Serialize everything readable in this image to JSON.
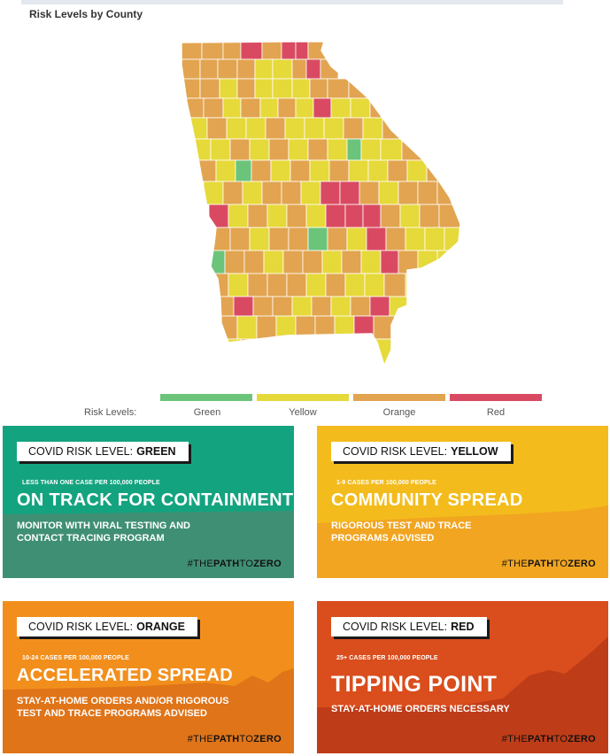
{
  "map": {
    "title": "Risk Levels by County",
    "legend_label": "Risk Levels:",
    "legend": [
      {
        "name": "Green",
        "color": "#6cc47a"
      },
      {
        "name": "Yellow",
        "color": "#e6d93a"
      },
      {
        "name": "Orange",
        "color": "#e2a450"
      },
      {
        "name": "Red",
        "color": "#d94a62"
      }
    ]
  },
  "cards": [
    {
      "level_prefix": "COVID RISK LEVEL:",
      "level": "GREEN",
      "subtext": "LESS THAN ONE CASE PER 100,000 PEOPLE",
      "headline": "ON TRACK FOR CONTAINMENT",
      "advice_line1": "MONITOR WITH VIRAL TESTING AND",
      "advice_line2": "CONTACT TRACING PROGRAM",
      "hashtag_pre": "#THE",
      "hashtag_bold": "PATH",
      "hashtag_mid": "TO",
      "hashtag_end": "ZERO",
      "color": "#14a37f",
      "accent": "#3f8f74"
    },
    {
      "level_prefix": "COVID RISK LEVEL:",
      "level": "YELLOW",
      "subtext": "1-9 CASES PER 100,000 PEOPLE",
      "headline": "COMMUNITY SPREAD",
      "advice_line1": "RIGOROUS TEST AND TRACE",
      "advice_line2": "PROGRAMS ADVISED",
      "hashtag_pre": "#THE",
      "hashtag_bold": "PATH",
      "hashtag_mid": "TO",
      "hashtag_end": "ZERO",
      "color": "#f3bc1c",
      "accent": "#f1a521"
    },
    {
      "level_prefix": "COVID RISK LEVEL:",
      "level": "ORANGE",
      "subtext": "10-24 CASES PER 100,000 PEOPLE",
      "headline": "ACCELERATED SPREAD",
      "advice_line1": "STAY-AT-HOME ORDERS AND/OR RIGOROUS",
      "advice_line2": "TEST AND TRACE PROGRAMS ADVISED",
      "hashtag_pre": "#THE",
      "hashtag_bold": "PATH",
      "hashtag_mid": "TO",
      "hashtag_end": "ZERO",
      "color": "#f28f1c",
      "accent": "#e07419"
    },
    {
      "level_prefix": "COVID RISK LEVEL:",
      "level": "RED",
      "subtext": "25+ CASES PER 100,000 PEOPLE",
      "headline": "TIPPING POINT",
      "advice_line1": "STAY-AT-HOME ORDERS NECESSARY",
      "advice_line2": "",
      "hashtag_pre": "#THE",
      "hashtag_bold": "PATH",
      "hashtag_mid": "TO",
      "hashtag_end": "ZERO",
      "color": "#da4d1c",
      "accent": "#bf3c18"
    }
  ]
}
